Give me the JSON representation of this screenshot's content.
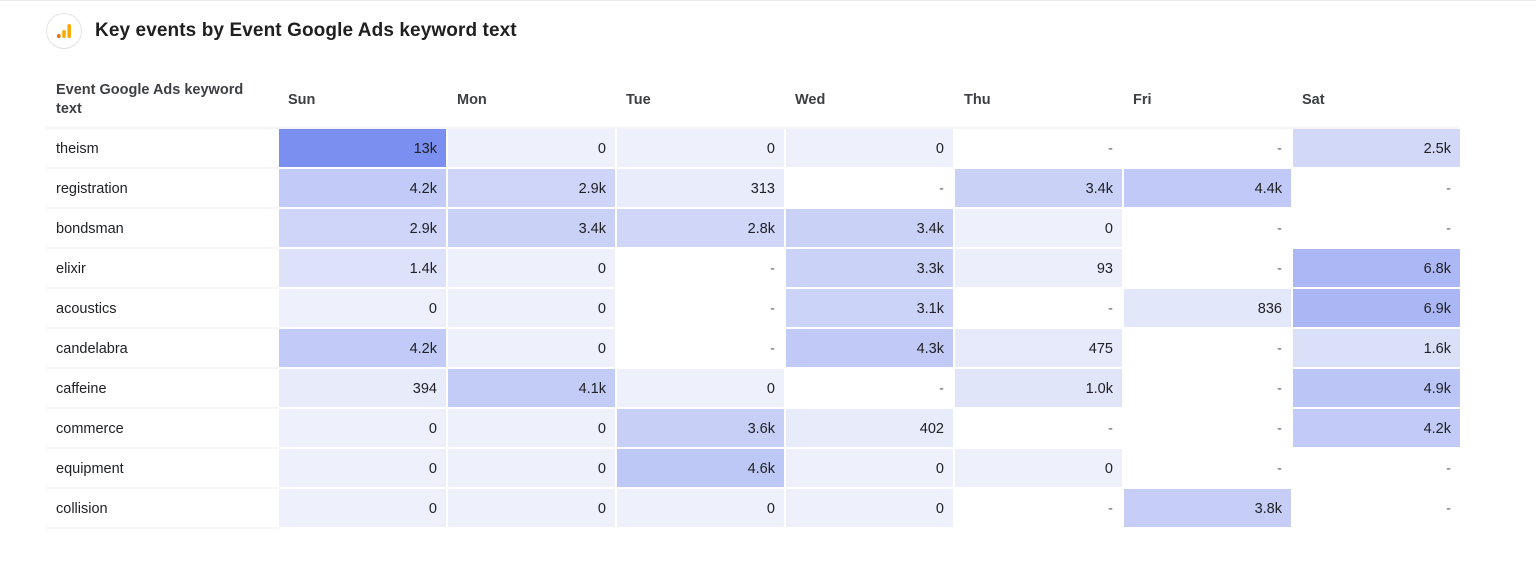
{
  "title": "Key events by Event Google Ads keyword text",
  "icon": "analytics-bars-icon",
  "colors": {
    "heat_max": "#7b8ff0",
    "heat_min": "#eef0fb",
    "accent_orange": "#f9ab00",
    "accent_dark_orange": "#e37400"
  },
  "chart_data": {
    "type": "heatmap",
    "title": "Key events by Event Google Ads keyword text",
    "row_header": [
      "Event Google Ads keyword",
      "text"
    ],
    "columns": [
      "Sun",
      "Mon",
      "Tue",
      "Wed",
      "Thu",
      "Fri",
      "Sat"
    ],
    "rows": [
      "theism",
      "registration",
      "bondsman",
      "elixir",
      "acoustics",
      "candelabra",
      "caffeine",
      "commerce",
      "equipment",
      "collision"
    ],
    "values": [
      [
        13000,
        0,
        0,
        0,
        null,
        null,
        2500
      ],
      [
        4200,
        2900,
        313,
        null,
        3400,
        4400,
        null
      ],
      [
        2900,
        3400,
        2800,
        3400,
        0,
        null,
        null
      ],
      [
        1400,
        0,
        null,
        3300,
        93,
        null,
        6800
      ],
      [
        0,
        0,
        null,
        3100,
        null,
        836,
        6900
      ],
      [
        4200,
        0,
        null,
        4300,
        475,
        null,
        1600
      ],
      [
        394,
        4100,
        0,
        null,
        1000,
        null,
        4900
      ],
      [
        0,
        0,
        3600,
        402,
        null,
        null,
        4200
      ],
      [
        0,
        0,
        4600,
        0,
        0,
        null,
        null
      ],
      [
        0,
        0,
        0,
        0,
        null,
        3800,
        null
      ]
    ],
    "labels": [
      [
        "13k",
        "0",
        "0",
        "0",
        "-",
        "-",
        "2.5k"
      ],
      [
        "4.2k",
        "2.9k",
        "313",
        "-",
        "3.4k",
        "4.4k",
        "-"
      ],
      [
        "2.9k",
        "3.4k",
        "2.8k",
        "3.4k",
        "0",
        "-",
        "-"
      ],
      [
        "1.4k",
        "0",
        "-",
        "3.3k",
        "93",
        "-",
        "6.8k"
      ],
      [
        "0",
        "0",
        "-",
        "3.1k",
        "-",
        "836",
        "6.9k"
      ],
      [
        "4.2k",
        "0",
        "-",
        "4.3k",
        "475",
        "-",
        "1.6k"
      ],
      [
        "394",
        "4.1k",
        "0",
        "-",
        "1.0k",
        "-",
        "4.9k"
      ],
      [
        "0",
        "0",
        "3.6k",
        "402",
        "-",
        "-",
        "4.2k"
      ],
      [
        "0",
        "0",
        "4.6k",
        "0",
        "0",
        "-",
        "-"
      ],
      [
        "0",
        "0",
        "0",
        "0",
        "-",
        "3.8k",
        "-"
      ]
    ]
  }
}
